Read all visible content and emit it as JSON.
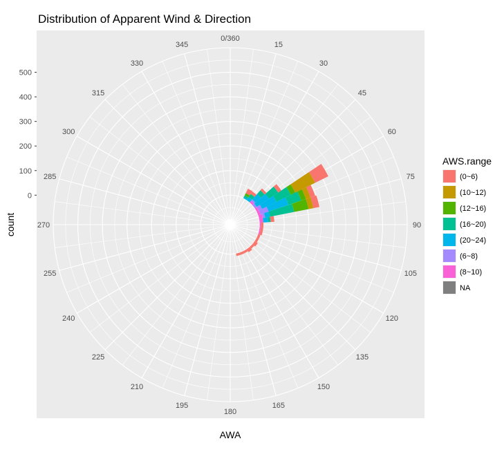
{
  "chart_data": {
    "type": "bar",
    "coord": "polar",
    "title": "Distribution of Apparent Wind & Direction",
    "xlabel": "AWA",
    "ylabel": "count",
    "angle_labels": [
      "0/360",
      "15",
      "30",
      "45",
      "60",
      "75",
      "90",
      "105",
      "120",
      "135",
      "150",
      "165",
      "180",
      "195",
      "210",
      "225",
      "240",
      "255",
      "270",
      "285",
      "300",
      "315",
      "330",
      "345"
    ],
    "radius_ticks": [
      0,
      100,
      200,
      300,
      400,
      500
    ],
    "ylim": [
      -120,
      600
    ],
    "legend": {
      "title": "AWS.range",
      "position": "right",
      "entries": [
        {
          "label": "(0~6)",
          "color": "#F8766D"
        },
        {
          "label": "(10~12)",
          "color": "#C49A00"
        },
        {
          "label": "(12~16)",
          "color": "#53B400"
        },
        {
          "label": "(16~20)",
          "color": "#00C094"
        },
        {
          "label": "(20~24)",
          "color": "#00B6EB"
        },
        {
          "label": "(6~8)",
          "color": "#A58AFF"
        },
        {
          "label": "(8~10)",
          "color": "#FB61D7"
        },
        {
          "label": "NA",
          "color": "#7F7F7F"
        }
      ]
    },
    "bin_width_deg": 7.5,
    "bars": [
      {
        "angle": 30,
        "segments": [
          [
            "(20~24)",
            5
          ],
          [
            "(16~20)",
            8
          ],
          [
            "(12~16)",
            10
          ],
          [
            "(0~6)",
            20
          ]
        ]
      },
      {
        "angle": 37.5,
        "segments": [
          [
            "(20~24)",
            15
          ],
          [
            "(16~20)",
            15
          ],
          [
            "(0~6)",
            12
          ]
        ]
      },
      {
        "angle": 45,
        "segments": [
          [
            "(8~10)",
            8
          ],
          [
            "(6~8)",
            8
          ],
          [
            "(20~24)",
            30
          ],
          [
            "(16~20)",
            20
          ],
          [
            "(0~6)",
            10
          ]
        ]
      },
      {
        "angle": 52.5,
        "segments": [
          [
            "(6~8)",
            10
          ],
          [
            "(20~24)",
            60
          ],
          [
            "(16~20)",
            45
          ],
          [
            "(0~6)",
            15
          ]
        ]
      },
      {
        "angle": 60,
        "segments": [
          [
            "(8~10)",
            10
          ],
          [
            "(6~8)",
            15
          ],
          [
            "(20~24)",
            65
          ],
          [
            "(16~20)",
            65
          ],
          [
            "(12~16)",
            20
          ],
          [
            "(10~12)",
            90
          ],
          [
            "(0~6)",
            60
          ]
        ]
      },
      {
        "angle": 67.5,
        "segments": [
          [
            "(8~10)",
            10
          ],
          [
            "(6~8)",
            35
          ],
          [
            "(20~24)",
            85
          ],
          [
            "(16~20)",
            55
          ],
          [
            "(12~16)",
            20
          ],
          [
            "(10~12)",
            20
          ],
          [
            "(0~6)",
            20
          ]
        ]
      },
      {
        "angle": 75,
        "segments": [
          [
            "(8~10)",
            15
          ],
          [
            "(6~8)",
            10
          ],
          [
            "(20~24)",
            20
          ],
          [
            "(16~20)",
            100
          ],
          [
            "(12~16)",
            60
          ],
          [
            "(10~12)",
            20
          ],
          [
            "(0~6)",
            25
          ]
        ]
      },
      {
        "angle": 82.5,
        "segments": [
          [
            "(8~10)",
            15
          ],
          [
            "(20~24)",
            20
          ],
          [
            "(16~20)",
            10
          ],
          [
            "(0~6)",
            15
          ]
        ]
      },
      {
        "angle": 90,
        "segments": [
          [
            "(8~10)",
            5
          ],
          [
            "(0~6)",
            10
          ]
        ]
      },
      {
        "angle": 97.5,
        "segments": [
          [
            "(8~10)",
            5
          ],
          [
            "(0~6)",
            10
          ]
        ]
      },
      {
        "angle": 105,
        "segments": [
          [
            "(8~10)",
            5
          ],
          [
            "(0~6)",
            10
          ]
        ]
      },
      {
        "angle": 112.5,
        "segments": [
          [
            "(0~6)",
            10
          ]
        ]
      },
      {
        "angle": 120,
        "segments": [
          [
            "(0~6)",
            10
          ]
        ]
      },
      {
        "angle": 127.5,
        "segments": [
          [
            "(0~6)",
            15
          ]
        ]
      },
      {
        "angle": 135,
        "segments": [
          [
            "(0~6)",
            10
          ]
        ]
      },
      {
        "angle": 142.5,
        "segments": [
          [
            "(0~6)",
            15
          ]
        ]
      },
      {
        "angle": 150,
        "segments": [
          [
            "(0~6)",
            10
          ]
        ]
      },
      {
        "angle": 157.5,
        "segments": [
          [
            "(0~6)",
            10
          ]
        ]
      },
      {
        "angle": 165,
        "segments": [
          [
            "(0~6)",
            10
          ]
        ]
      }
    ]
  }
}
